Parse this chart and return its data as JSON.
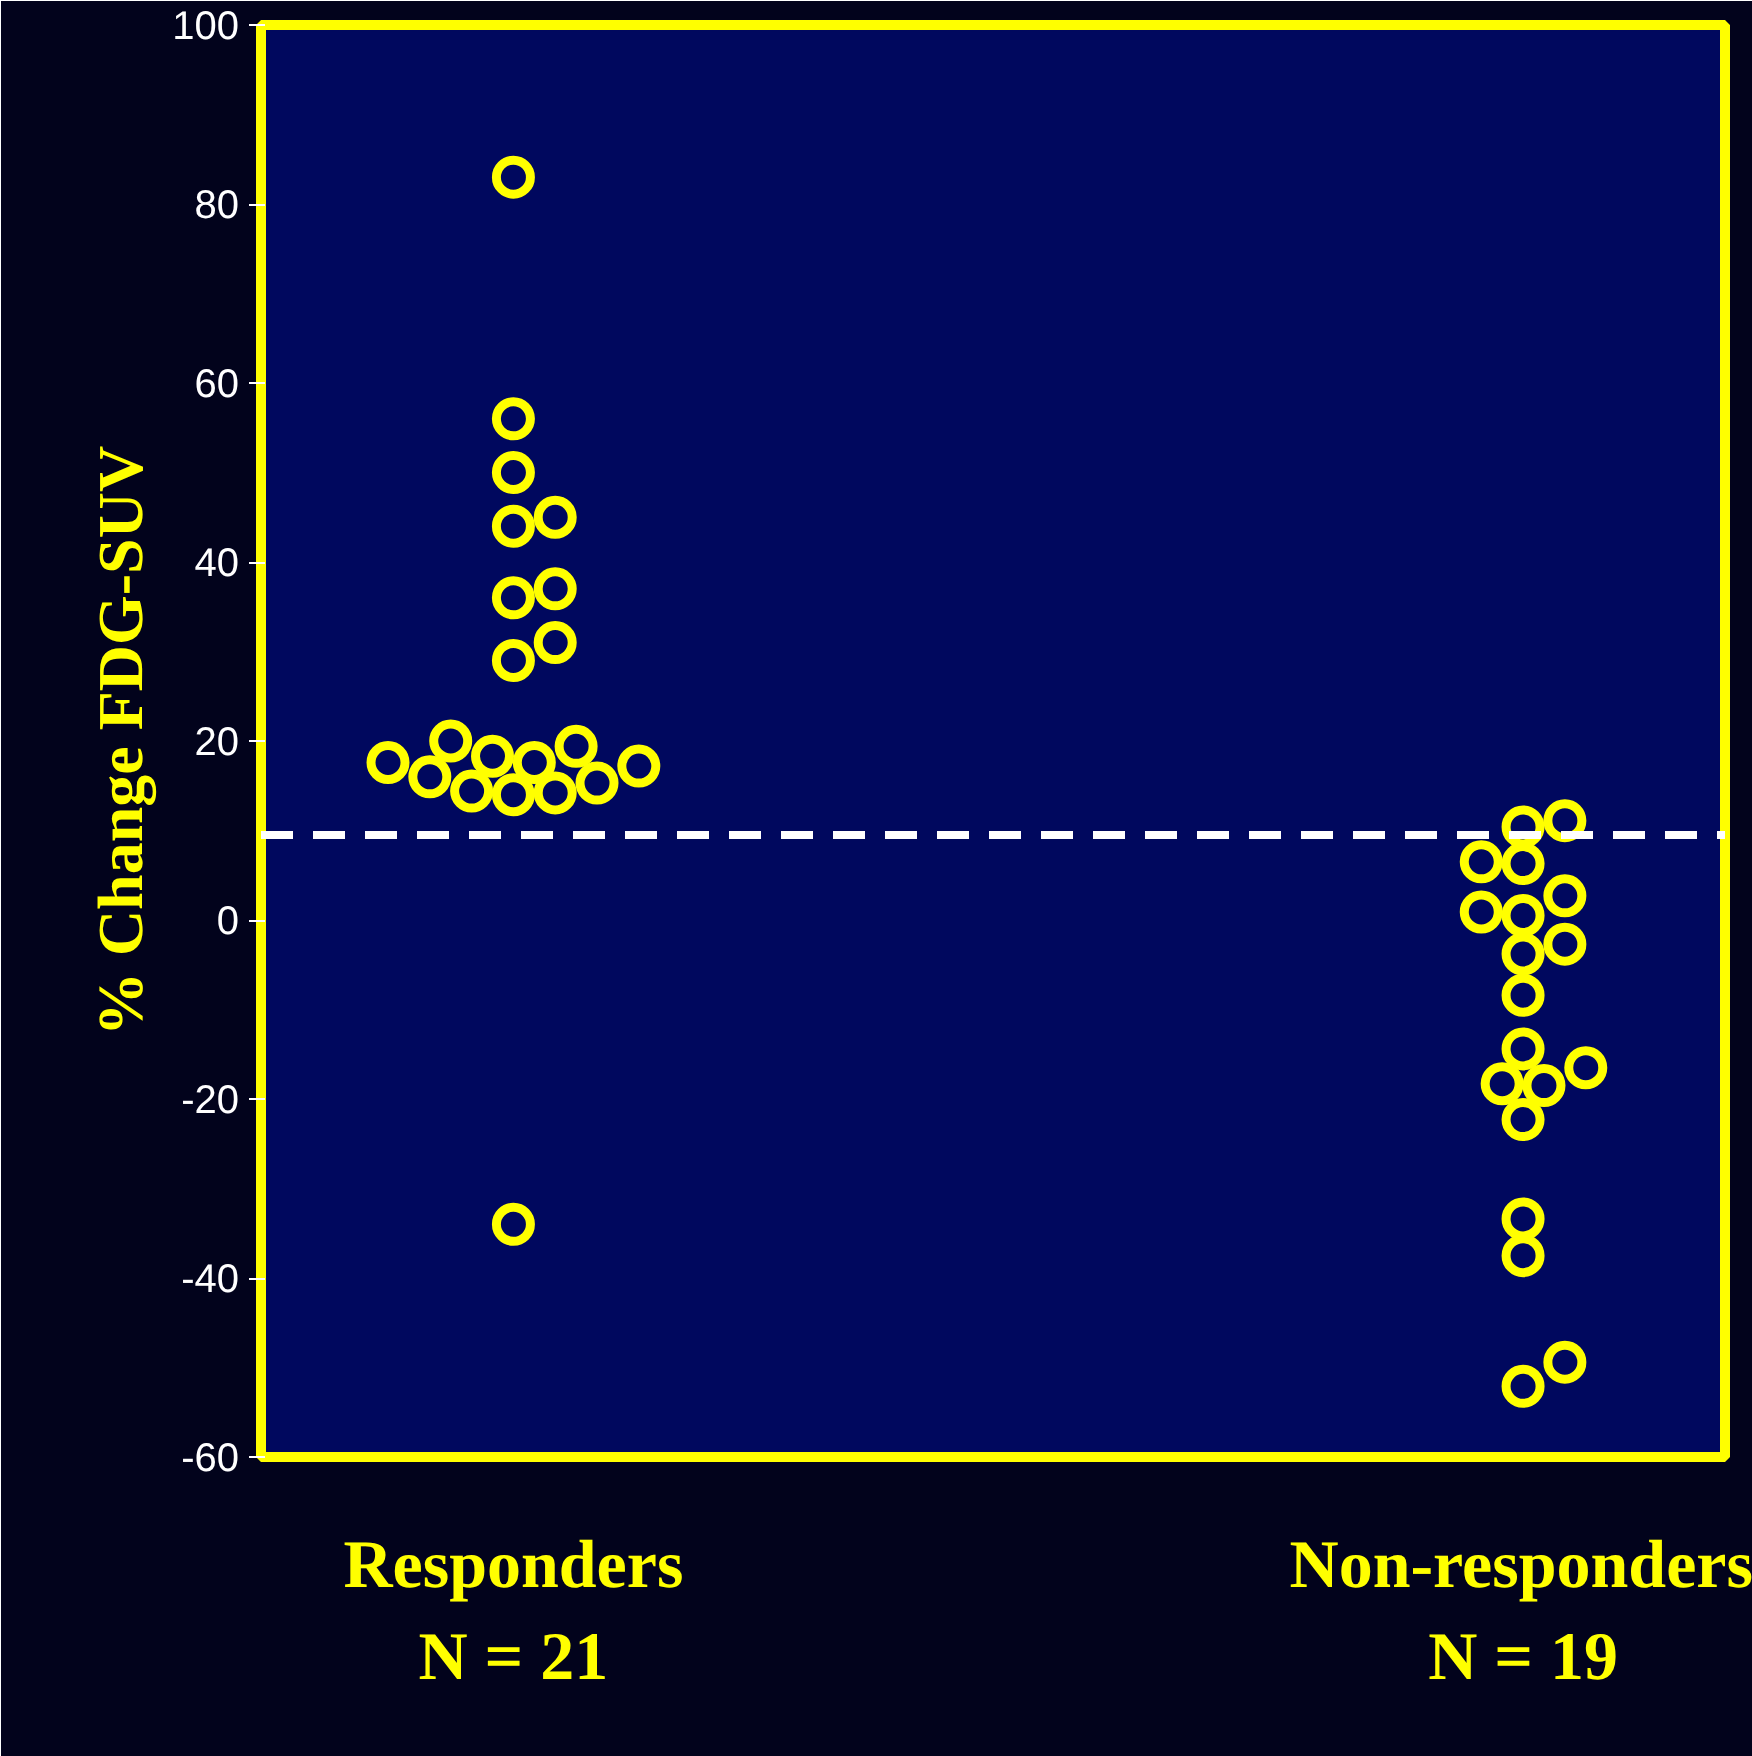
{
  "chart_data": {
    "type": "scatter",
    "ylabel": "% Change FDG-SUV",
    "categories": [
      "Responders",
      "Non-responders"
    ],
    "series": [
      {
        "color": "#ffff00",
        "x": [
          "Responders",
          "Responders",
          "Responders",
          "Responders",
          "Responders",
          "Responders",
          "Responders",
          "Responders",
          "Responders",
          "Responders",
          "Responders",
          "Responders",
          "Responders",
          "Responders",
          "Responders",
          "Responders",
          "Responders",
          "Responders",
          "Responders",
          "Responders",
          "Responders"
        ],
        "values": [
          83,
          56,
          50,
          44,
          45,
          37,
          36,
          31,
          29,
          17.6,
          14.4,
          19.4,
          17.2,
          14,
          20,
          17.6,
          16,
          18.3,
          15.3,
          14.2,
          -34
        ]
      },
      {
        "color": "#ffff00",
        "x": [
          "Non-responders",
          "Non-responders",
          "Non-responders",
          "Non-responders",
          "Non-responders",
          "Non-responders",
          "Non-responders",
          "Non-responders",
          "Non-responders",
          "Non-responders",
          "Non-responders",
          "Non-responders",
          "Non-responders",
          "Non-responders",
          "Non-responders",
          "Non-responders",
          "Non-responders",
          "Non-responders",
          "Non-responders"
        ],
        "values": [
          10.4,
          11.1,
          6.5,
          6.3,
          2.7,
          0.9,
          0.5,
          -2.7,
          -3.8,
          -8.4,
          -14.4,
          -18.5,
          -16.5,
          -18.3,
          -22.3,
          -33.4,
          -37.5,
          -49.4,
          -52.1
        ]
      }
    ],
    "marker": "circle",
    "ylim": [
      -60,
      100
    ],
    "yticks": [
      -60,
      -40,
      -20,
      0,
      20,
      40,
      60,
      80,
      100
    ],
    "ref_lines": [
      {
        "axis": "y",
        "value": 9.5,
        "color": "#ffffff",
        "line_style": "dashed"
      }
    ],
    "annotations": [
      "N = 21",
      "N = 19"
    ],
    "grid": false
  }
}
